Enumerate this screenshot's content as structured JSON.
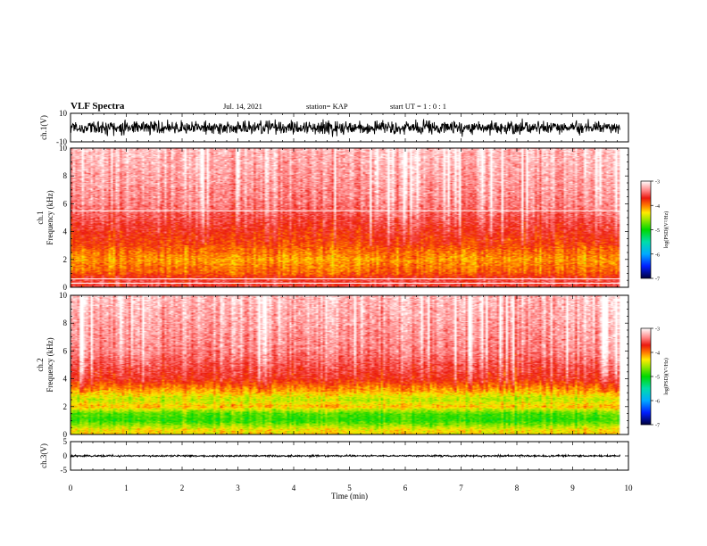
{
  "header": {
    "title": "VLF Spectra",
    "date": "Jul. 14, 2021",
    "station": "station= KAP",
    "start": "start UT =  1 : 0 : 1"
  },
  "chart_data": [
    {
      "type": "line",
      "panel": "ch1-waveform",
      "ylabel": "ch.1(V)",
      "ylim": [
        -10,
        10
      ],
      "ytick_labels": [
        "10",
        "-10"
      ],
      "x_range_min": [
        0,
        9.85
      ],
      "typical_range": [
        -6,
        6
      ],
      "trace_color": "#000000"
    },
    {
      "type": "heatmap",
      "panel": "ch1-spectrogram",
      "ylabel_top": "ch.1",
      "ylabel": "Frequency (kHz)",
      "ylim": [
        0,
        10
      ],
      "yticks": [
        0,
        2,
        4,
        6,
        8,
        10
      ],
      "x_range_min": [
        0,
        9.85
      ],
      "intensity_profile": [
        {
          "freq_khz": 0.5,
          "log_psd": -3.6
        },
        {
          "freq_khz": 1.0,
          "log_psd": -3.9
        },
        {
          "freq_khz": 1.5,
          "log_psd": -4.0
        },
        {
          "freq_khz": 2.0,
          "log_psd": -4.1
        },
        {
          "freq_khz": 3.0,
          "log_psd": -3.85
        },
        {
          "freq_khz": 4.0,
          "log_psd": -3.7
        },
        {
          "freq_khz": 6.0,
          "log_psd": -3.4
        },
        {
          "freq_khz": 8.0,
          "log_psd": -3.3
        },
        {
          "freq_khz": 10.0,
          "log_psd": -3.2
        }
      ],
      "white_lines_khz": [
        0.3,
        0.6,
        5.5
      ],
      "colorbar": {
        "label": "log(PSD)(V²/Hz)",
        "range": [
          -7,
          -3
        ],
        "ticks": [
          -3,
          -4,
          -5,
          -6,
          -7
        ]
      }
    },
    {
      "type": "heatmap",
      "panel": "ch2-spectrogram",
      "ylabel_top": "ch.2",
      "ylabel": "Frequency (kHz)",
      "ylim": [
        0,
        10
      ],
      "yticks": [
        0,
        2,
        4,
        6,
        8,
        10
      ],
      "x_range_min": [
        0,
        9.85
      ],
      "intensity_profile": [
        {
          "freq_khz": 0.3,
          "log_psd": -4.3
        },
        {
          "freq_khz": 1.0,
          "log_psd": -4.9
        },
        {
          "freq_khz": 1.5,
          "log_psd": -4.8
        },
        {
          "freq_khz": 2.0,
          "log_psd": -4.2
        },
        {
          "freq_khz": 2.5,
          "log_psd": -4.5
        },
        {
          "freq_khz": 3.0,
          "log_psd": -4.2
        },
        {
          "freq_khz": 4.0,
          "log_psd": -3.7
        },
        {
          "freq_khz": 6.0,
          "log_psd": -3.4
        },
        {
          "freq_khz": 10.0,
          "log_psd": -3.2
        }
      ],
      "colorbar": {
        "label": "log(PSD)(V²/Hz)",
        "range": [
          -7,
          -3
        ],
        "ticks": [
          -3,
          -4,
          -5,
          -6,
          -7
        ]
      }
    },
    {
      "type": "line",
      "panel": "ch3-waveform",
      "ylabel": "ch.3(V)",
      "ylim": [
        -5,
        5
      ],
      "ytick_labels": [
        "5",
        "0",
        "-5"
      ],
      "x_range_min": [
        0,
        9.85
      ],
      "typical_range": [
        -0.4,
        0.4
      ],
      "trace_color": "#000000",
      "xlabel": "Time (min)",
      "xlim": [
        0,
        10
      ],
      "xticks": [
        0,
        1,
        2,
        3,
        4,
        5,
        6,
        7,
        8,
        9,
        10
      ]
    }
  ]
}
